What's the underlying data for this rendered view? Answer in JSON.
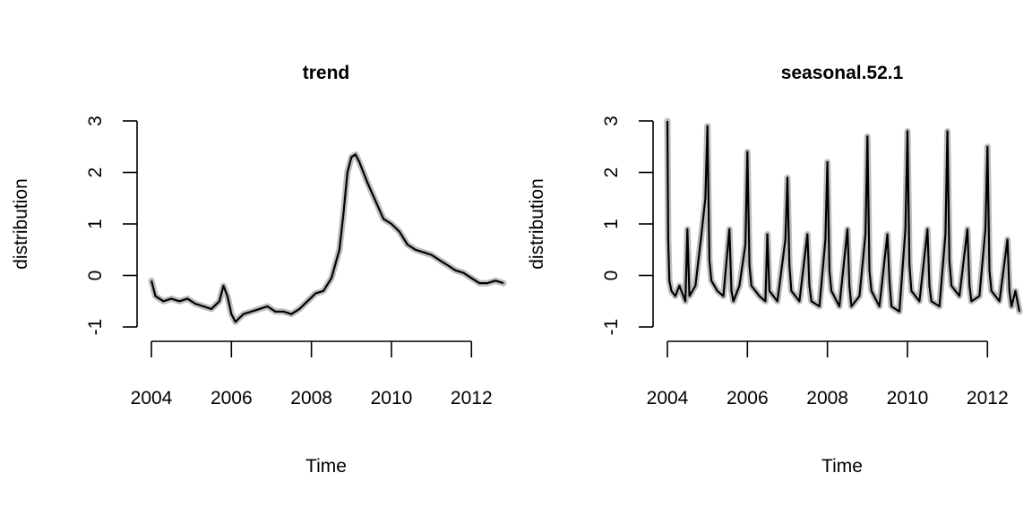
{
  "chart_data": [
    {
      "type": "line",
      "title": "trend",
      "xlabel": "Time",
      "ylabel": "distribution",
      "xlim": [
        2004,
        2012.8
      ],
      "ylim": [
        -1,
        3
      ],
      "xticks": [
        "2004",
        "2006",
        "2008",
        "2010",
        "2012"
      ],
      "yticks": [
        "-1",
        "0",
        "1",
        "2",
        "3"
      ],
      "band_color": "#bdbdbd",
      "line_color": "#000000",
      "series": [
        {
          "x": [
            2004.0,
            2004.1,
            2004.3,
            2004.5,
            2004.7,
            2004.9,
            2005.1,
            2005.3,
            2005.5,
            2005.7,
            2005.8,
            2005.9,
            2006.0,
            2006.1,
            2006.3,
            2006.5,
            2006.7,
            2006.9,
            2007.1,
            2007.3,
            2007.5,
            2007.7,
            2007.9,
            2008.1,
            2008.3,
            2008.5,
            2008.7,
            2008.8,
            2008.9,
            2009.0,
            2009.1,
            2009.2,
            2009.4,
            2009.6,
            2009.8,
            2010.0,
            2010.2,
            2010.4,
            2010.6,
            2010.8,
            2011.0,
            2011.2,
            2011.4,
            2011.6,
            2011.8,
            2012.0,
            2012.2,
            2012.4,
            2012.6,
            2012.8
          ],
          "y": [
            -0.1,
            -0.4,
            -0.5,
            -0.45,
            -0.5,
            -0.45,
            -0.55,
            -0.6,
            -0.65,
            -0.5,
            -0.2,
            -0.4,
            -0.75,
            -0.9,
            -0.75,
            -0.7,
            -0.65,
            -0.6,
            -0.7,
            -0.7,
            -0.75,
            -0.65,
            -0.5,
            -0.35,
            -0.3,
            -0.05,
            0.5,
            1.2,
            2.0,
            2.3,
            2.35,
            2.2,
            1.8,
            1.45,
            1.1,
            1.0,
            0.85,
            0.6,
            0.5,
            0.45,
            0.4,
            0.3,
            0.2,
            0.1,
            0.05,
            -0.05,
            -0.15,
            -0.15,
            -0.1,
            -0.15
          ]
        }
      ]
    },
    {
      "type": "line",
      "title": "seasonal.52.1",
      "xlabel": "Time",
      "ylabel": "distribution",
      "xlim": [
        2004,
        2012.8
      ],
      "ylim": [
        -1,
        3
      ],
      "xticks": [
        "2004",
        "2006",
        "2008",
        "2010",
        "2012"
      ],
      "yticks": [
        "-1",
        "0",
        "1",
        "2",
        "3"
      ],
      "band_color": "#bdbdbd",
      "line_color": "#000000",
      "series": [
        {
          "x": [
            2004.0,
            2004.02,
            2004.05,
            2004.1,
            2004.2,
            2004.3,
            2004.45,
            2004.5,
            2004.55,
            2004.7,
            2004.85,
            2004.95,
            2005.0,
            2005.05,
            2005.1,
            2005.25,
            2005.4,
            2005.55,
            2005.6,
            2005.65,
            2005.8,
            2005.95,
            2006.0,
            2006.05,
            2006.1,
            2006.3,
            2006.45,
            2006.5,
            2006.55,
            2006.75,
            2006.95,
            2007.0,
            2007.05,
            2007.1,
            2007.3,
            2007.5,
            2007.55,
            2007.6,
            2007.8,
            2007.95,
            2008.0,
            2008.05,
            2008.1,
            2008.3,
            2008.5,
            2008.55,
            2008.6,
            2008.8,
            2008.95,
            2009.0,
            2009.05,
            2009.1,
            2009.3,
            2009.5,
            2009.55,
            2009.6,
            2009.8,
            2009.95,
            2010.0,
            2010.05,
            2010.1,
            2010.3,
            2010.5,
            2010.55,
            2010.6,
            2010.8,
            2010.95,
            2011.0,
            2011.05,
            2011.1,
            2011.3,
            2011.5,
            2011.55,
            2011.6,
            2011.8,
            2011.95,
            2012.0,
            2012.05,
            2012.1,
            2012.3,
            2012.5,
            2012.55,
            2012.6,
            2012.7,
            2012.8
          ],
          "y": [
            3.0,
            0.7,
            -0.1,
            -0.3,
            -0.4,
            -0.2,
            -0.5,
            0.9,
            -0.4,
            -0.2,
            0.8,
            1.5,
            2.9,
            0.3,
            -0.1,
            -0.3,
            -0.4,
            0.9,
            -0.3,
            -0.5,
            -0.2,
            0.6,
            2.4,
            0.2,
            -0.2,
            -0.4,
            -0.5,
            0.8,
            -0.3,
            -0.5,
            0.7,
            1.9,
            0.2,
            -0.3,
            -0.5,
            0.8,
            -0.2,
            -0.5,
            -0.6,
            0.7,
            2.2,
            0.1,
            -0.3,
            -0.6,
            0.9,
            -0.2,
            -0.6,
            -0.4,
            0.8,
            2.7,
            0.1,
            -0.3,
            -0.6,
            0.8,
            -0.1,
            -0.6,
            -0.7,
            0.9,
            2.8,
            0.2,
            -0.3,
            -0.5,
            0.9,
            -0.2,
            -0.5,
            -0.6,
            0.8,
            2.8,
            0.3,
            -0.2,
            -0.4,
            0.9,
            -0.2,
            -0.5,
            -0.4,
            0.9,
            2.5,
            0.1,
            -0.3,
            -0.5,
            0.7,
            -0.3,
            -0.6,
            -0.3,
            -0.7
          ]
        }
      ]
    }
  ]
}
